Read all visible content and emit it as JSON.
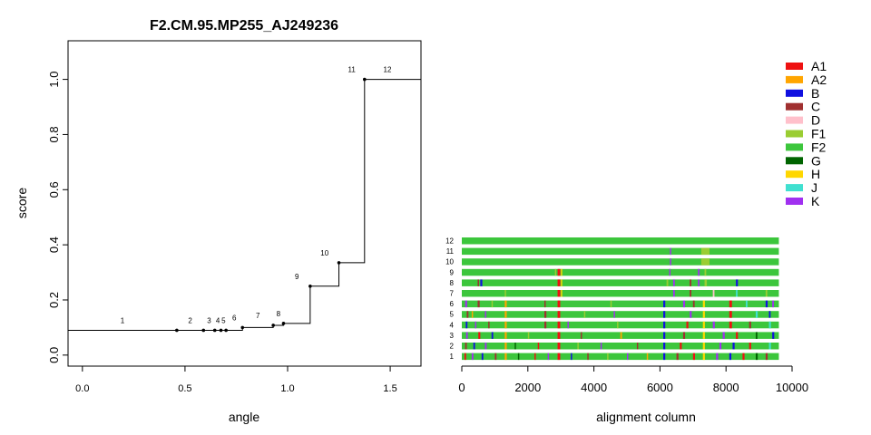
{
  "colors": {
    "A1": "#ee1111",
    "A2": "#ffa500",
    "B": "#1010e0",
    "C": "#a03030",
    "D": "#ffc0cb",
    "F1": "#9acd32",
    "F2": "#3cc63c",
    "G": "#006400",
    "H": "#ffd700",
    "J": "#40e0d0",
    "K": "#a030f0"
  },
  "chart_data": [
    {
      "type": "line",
      "subtype": "step",
      "title": "F2.CM.95.MP255_AJ249236",
      "xlabel": "angle",
      "ylabel": "score",
      "xlim": [
        -0.07,
        1.65
      ],
      "ylim": [
        -0.04,
        1.14
      ],
      "xticks": [
        0.0,
        0.5,
        1.0,
        1.5
      ],
      "xtick_labels": [
        "0.0",
        "0.5",
        "1.0",
        "1.5"
      ],
      "yticks": [
        0.0,
        0.2,
        0.4,
        0.6,
        0.8,
        1.0
      ],
      "ytick_labels": [
        "0.0",
        "0.2",
        "0.4",
        "0.6",
        "0.8",
        "1.0"
      ],
      "grid": false,
      "points": [
        {
          "label": "1",
          "x": 0.46,
          "y": 0.09
        },
        {
          "label": "2",
          "x": 0.59,
          "y": 0.09
        },
        {
          "label": "3",
          "x": 0.645,
          "y": 0.09
        },
        {
          "label": "4",
          "x": 0.675,
          "y": 0.09
        },
        {
          "label": "5",
          "x": 0.7,
          "y": 0.09
        },
        {
          "label": "6",
          "x": 0.78,
          "y": 0.1
        },
        {
          "label": "7",
          "x": 0.93,
          "y": 0.108
        },
        {
          "label": "8",
          "x": 0.98,
          "y": 0.115
        },
        {
          "label": "9",
          "x": 1.11,
          "y": 0.25
        },
        {
          "label": "10",
          "x": 1.25,
          "y": 0.335
        },
        {
          "label": "11",
          "x": 1.375,
          "y": 1.0
        },
        {
          "label": "12",
          "x": 1.65,
          "y": 1.0
        }
      ]
    },
    {
      "type": "heatmap",
      "subtype": "mosaic",
      "xlabel": "alignment column",
      "xlim": [
        0,
        10000
      ],
      "xticks": [
        0,
        2000,
        4000,
        6000,
        8000,
        10000
      ],
      "xtick_labels": [
        "0",
        "2000",
        "4000",
        "6000",
        "8000",
        "10000"
      ],
      "xmax": 9600,
      "base_color": "F2",
      "grid": false,
      "legend_position": "top-right",
      "legend": [
        "A1",
        "A2",
        "B",
        "C",
        "D",
        "F1",
        "F2",
        "G",
        "H",
        "J",
        "K"
      ],
      "rows": [
        {
          "label": "12",
          "segments": []
        },
        {
          "label": "11",
          "segments": [
            [
              6300,
              6340,
              "K"
            ],
            [
              7250,
              7500,
              "F1"
            ]
          ]
        },
        {
          "label": "10",
          "segments": [
            [
              6300,
              6340,
              "K"
            ],
            [
              7250,
              7500,
              "F1"
            ]
          ]
        },
        {
          "label": "9",
          "segments": [
            [
              2820,
              2860,
              "F1"
            ],
            [
              2900,
              2980,
              "A1"
            ],
            [
              3000,
              3040,
              "H"
            ],
            [
              6280,
              6320,
              "K"
            ],
            [
              7150,
              7200,
              "K"
            ],
            [
              7350,
              7400,
              "F1"
            ]
          ]
        },
        {
          "label": "8",
          "segments": [
            [
              480,
              520,
              "C"
            ],
            [
              560,
              620,
              "B"
            ],
            [
              2900,
              2980,
              "A1"
            ],
            [
              3000,
              3040,
              "H"
            ],
            [
              6200,
              6250,
              "F1"
            ],
            [
              6400,
              6450,
              "K"
            ],
            [
              6900,
              6950,
              "C"
            ],
            [
              7150,
              7200,
              "K"
            ],
            [
              7350,
              7420,
              "F1"
            ],
            [
              8300,
              8360,
              "B"
            ]
          ]
        },
        {
          "label": "7",
          "segments": [
            [
              1300,
              1340,
              "F1"
            ],
            [
              2900,
              2980,
              "A1"
            ],
            [
              3000,
              3040,
              "H"
            ],
            [
              6400,
              6450,
              "K"
            ],
            [
              6900,
              6950,
              "C"
            ],
            [
              7600,
              7650,
              "D"
            ],
            [
              8300,
              8350,
              "J"
            ],
            [
              9200,
              9250,
              "F1"
            ]
          ]
        },
        {
          "label": "6",
          "segments": [
            [
              100,
              160,
              "K"
            ],
            [
              480,
              540,
              "C"
            ],
            [
              900,
              940,
              "F1"
            ],
            [
              1300,
              1360,
              "A2"
            ],
            [
              2500,
              2540,
              "C"
            ],
            [
              2900,
              2980,
              "A1"
            ],
            [
              4500,
              4540,
              "F1"
            ],
            [
              6100,
              6160,
              "B"
            ],
            [
              6700,
              6760,
              "K"
            ],
            [
              7000,
              7050,
              "C"
            ],
            [
              7300,
              7360,
              "H"
            ],
            [
              8100,
              8180,
              "A1"
            ],
            [
              8600,
              8650,
              "J"
            ],
            [
              9200,
              9260,
              "B"
            ],
            [
              9400,
              9450,
              "K"
            ]
          ]
        },
        {
          "label": "5",
          "segments": [
            [
              150,
              200,
              "C"
            ],
            [
              300,
              340,
              "A2"
            ],
            [
              700,
              740,
              "K"
            ],
            [
              1300,
              1360,
              "A2"
            ],
            [
              2500,
              2560,
              "C"
            ],
            [
              2900,
              2980,
              "A1"
            ],
            [
              3700,
              3740,
              "F1"
            ],
            [
              4600,
              4640,
              "K"
            ],
            [
              6100,
              6160,
              "B"
            ],
            [
              6900,
              6960,
              "K"
            ],
            [
              7300,
              7360,
              "H"
            ],
            [
              8100,
              8180,
              "A1"
            ],
            [
              8900,
              8960,
              "J"
            ],
            [
              9300,
              9350,
              "B"
            ]
          ]
        },
        {
          "label": "4",
          "segments": [
            [
              120,
              170,
              "B"
            ],
            [
              400,
              440,
              "K"
            ],
            [
              800,
              840,
              "C"
            ],
            [
              1300,
              1360,
              "A2"
            ],
            [
              2500,
              2560,
              "C"
            ],
            [
              2900,
              2980,
              "A1"
            ],
            [
              3200,
              3240,
              "K"
            ],
            [
              4700,
              4740,
              "F1"
            ],
            [
              6100,
              6160,
              "B"
            ],
            [
              6800,
              6860,
              "A1"
            ],
            [
              7300,
              7360,
              "H"
            ],
            [
              7600,
              7660,
              "K"
            ],
            [
              8100,
              8180,
              "A1"
            ],
            [
              8700,
              8760,
              "C"
            ],
            [
              9300,
              9360,
              "J"
            ]
          ]
        },
        {
          "label": "3",
          "segments": [
            [
              130,
              180,
              "K"
            ],
            [
              500,
              560,
              "A1"
            ],
            [
              900,
              950,
              "B"
            ],
            [
              1300,
              1360,
              "A2"
            ],
            [
              2000,
              2040,
              "F1"
            ],
            [
              2900,
              2980,
              "A1"
            ],
            [
              3600,
              3640,
              "C"
            ],
            [
              4800,
              4850,
              "A2"
            ],
            [
              6100,
              6160,
              "B"
            ],
            [
              6700,
              6760,
              "C"
            ],
            [
              7300,
              7360,
              "H"
            ],
            [
              7900,
              7960,
              "K"
            ],
            [
              8300,
              8360,
              "A1"
            ],
            [
              8900,
              8950,
              "G"
            ],
            [
              9400,
              9460,
              "B"
            ]
          ]
        },
        {
          "label": "2",
          "segments": [
            [
              100,
              150,
              "C"
            ],
            [
              350,
              400,
              "B"
            ],
            [
              700,
              750,
              "K"
            ],
            [
              1300,
              1360,
              "A2"
            ],
            [
              1600,
              1640,
              "G"
            ],
            [
              2300,
              2340,
              "A1"
            ],
            [
              2900,
              2980,
              "A1"
            ],
            [
              3500,
              3540,
              "F1"
            ],
            [
              4200,
              4240,
              "K"
            ],
            [
              5300,
              5340,
              "C"
            ],
            [
              6100,
              6160,
              "B"
            ],
            [
              6600,
              6660,
              "A1"
            ],
            [
              7300,
              7360,
              "H"
            ],
            [
              7800,
              7860,
              "K"
            ],
            [
              8200,
              8260,
              "B"
            ],
            [
              8700,
              8760,
              "A1"
            ],
            [
              9300,
              9360,
              "J"
            ]
          ]
        },
        {
          "label": "1",
          "segments": [
            [
              80,
              130,
              "A1"
            ],
            [
              300,
              350,
              "K"
            ],
            [
              600,
              650,
              "B"
            ],
            [
              1000,
              1050,
              "C"
            ],
            [
              1300,
              1360,
              "A2"
            ],
            [
              1700,
              1740,
              "G"
            ],
            [
              2200,
              2240,
              "A1"
            ],
            [
              2600,
              2640,
              "K"
            ],
            [
              2900,
              2980,
              "A1"
            ],
            [
              3300,
              3340,
              "B"
            ],
            [
              3800,
              3840,
              "C"
            ],
            [
              4400,
              4440,
              "F1"
            ],
            [
              5000,
              5040,
              "K"
            ],
            [
              5600,
              5640,
              "A2"
            ],
            [
              6100,
              6160,
              "B"
            ],
            [
              6500,
              6560,
              "C"
            ],
            [
              7000,
              7060,
              "A1"
            ],
            [
              7300,
              7360,
              "H"
            ],
            [
              7700,
              7760,
              "K"
            ],
            [
              8100,
              8160,
              "B"
            ],
            [
              8500,
              8560,
              "A1"
            ],
            [
              8900,
              8960,
              "G"
            ],
            [
              9200,
              9260,
              "C"
            ]
          ]
        }
      ]
    }
  ]
}
